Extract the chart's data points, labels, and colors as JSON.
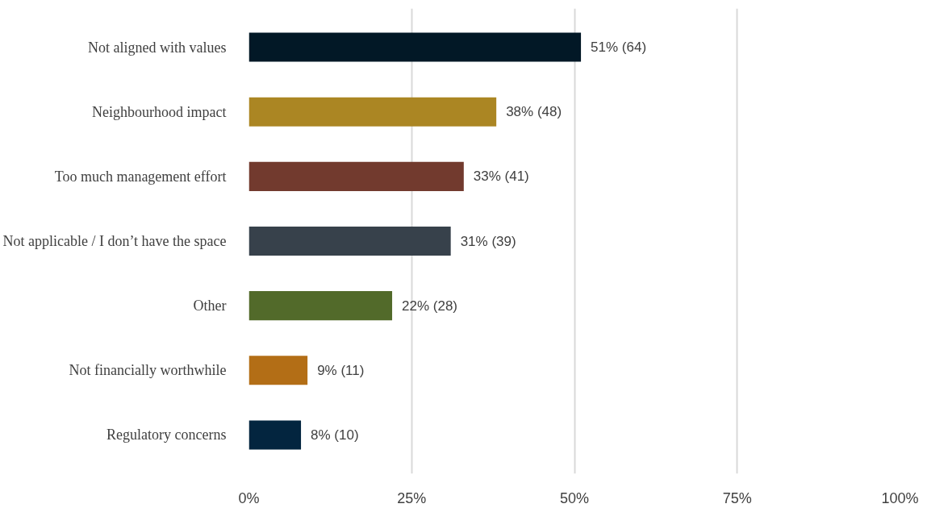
{
  "chart_data": {
    "type": "bar",
    "orientation": "horizontal",
    "categories": [
      "Not aligned with values",
      "Neighbourhood impact",
      "Too much management effort",
      "Not applicable / I don’t have the space",
      "Other",
      "Not financially worthwhile",
      "Regulatory concerns"
    ],
    "values": [
      51,
      38,
      33,
      31,
      22,
      9,
      8
    ],
    "colors": [
      "#021826",
      "#ab8623",
      "#723a2e",
      "#37414b",
      "#526a2a",
      "#b36e16",
      "#03253f"
    ],
    "value_labels": [
      "51% (64)",
      "38% (48)",
      "33% (41)",
      "31% (39)",
      "22% (28)",
      "9% (11)",
      "8% (10)"
    ],
    "xlim": [
      0,
      100
    ],
    "xticks": [
      {
        "value": 0,
        "label": "0%"
      },
      {
        "value": 25,
        "label": "25%"
      },
      {
        "value": 50,
        "label": "50%"
      },
      {
        "value": 75,
        "label": "75%"
      },
      {
        "value": 100,
        "label": "100%"
      }
    ],
    "grid": "x"
  }
}
